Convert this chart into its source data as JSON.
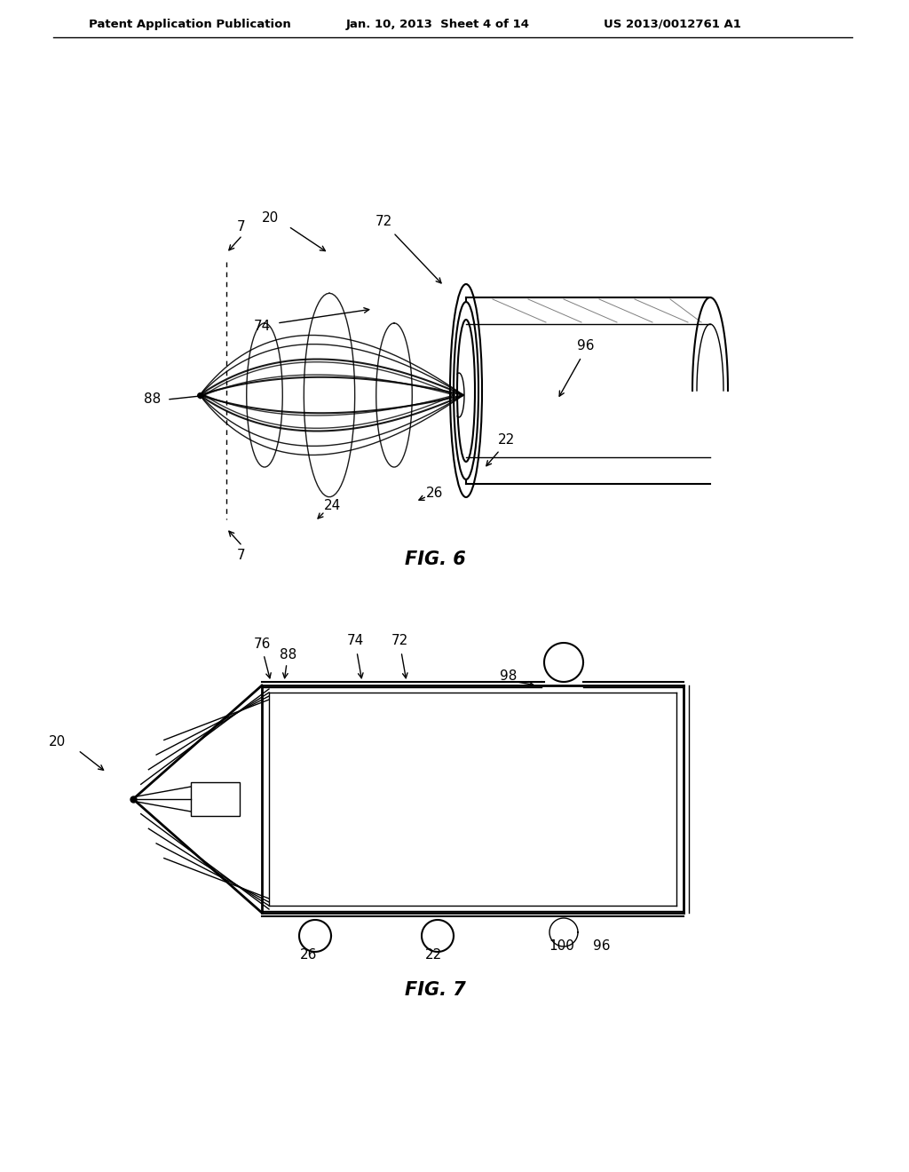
{
  "header_left": "Patent Application Publication",
  "header_center": "Jan. 10, 2013  Sheet 4 of 14",
  "header_right": "US 2013/0012761 A1",
  "fig6_label": "FIG. 6",
  "fig7_label": "FIG. 7",
  "bg_color": "#ffffff",
  "line_color": "#000000"
}
